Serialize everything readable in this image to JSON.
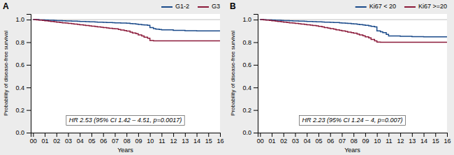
{
  "chart_data": [
    {
      "type": "step",
      "title": "A",
      "annotations": [
        "HR 2.53 (95% CI 1.42 – 4.51, p=0.0017)"
      ],
      "x_label": "Years",
      "y_label": "Probability of disease-free survival",
      "xlim": [
        -0.2,
        16
      ],
      "ylim": [
        0.0,
        1.05
      ],
      "xticks": [
        {
          "value": 0,
          "label": "00"
        },
        {
          "value": 1,
          "label": "01"
        },
        {
          "value": 2,
          "label": "02"
        },
        {
          "value": 3,
          "label": "03"
        },
        {
          "value": 4,
          "label": "04"
        },
        {
          "value": 5,
          "label": "05"
        },
        {
          "value": 6,
          "label": "06"
        },
        {
          "value": 7,
          "label": "07"
        },
        {
          "value": 8,
          "label": "08"
        },
        {
          "value": 9,
          "label": "09"
        },
        10,
        11,
        12,
        13,
        14,
        15,
        16
      ],
      "yticks": [
        {
          "value": 0.0,
          "label": "0.0"
        },
        0.2,
        0.4,
        0.6,
        0.8,
        {
          "value": 1.0,
          "label": "1.0"
        }
      ],
      "grid": false,
      "legend": "upper right",
      "reference_line": 1.0,
      "x": [
        0,
        0.3,
        0.5,
        0.8,
        1.0,
        1.3,
        1.5,
        1.8,
        2.0,
        2.3,
        2.5,
        2.8,
        3.0,
        3.3,
        3.5,
        3.8,
        4.0,
        4.3,
        4.5,
        4.8,
        5.0,
        5.3,
        5.5,
        5.8,
        6.0,
        6.3,
        6.5,
        6.8,
        7.0,
        7.3,
        7.5,
        7.8,
        8.0,
        8.3,
        8.5,
        8.8,
        9.0,
        9.3,
        9.5,
        9.8,
        10.0,
        10.3,
        10.5,
        10.8,
        11.0,
        12.0,
        13.0,
        14.0,
        15.0,
        16.0
      ],
      "series": [
        {
          "name": "G1-2",
          "color": "#1a4a8a",
          "values": [
            1.0,
            1.0,
            0.998,
            0.997,
            0.996,
            0.995,
            0.994,
            0.993,
            0.992,
            0.991,
            0.99,
            0.989,
            0.988,
            0.987,
            0.986,
            0.985,
            0.984,
            0.983,
            0.982,
            0.981,
            0.98,
            0.979,
            0.978,
            0.977,
            0.976,
            0.975,
            0.974,
            0.973,
            0.972,
            0.971,
            0.97,
            0.969,
            0.968,
            0.965,
            0.963,
            0.96,
            0.958,
            0.955,
            0.953,
            0.95,
            0.93,
            0.92,
            0.915,
            0.912,
            0.91,
            0.905,
            0.902,
            0.9,
            0.9,
            0.9
          ]
        },
        {
          "name": "G3",
          "color": "#8b1a3a",
          "values": [
            1.0,
            0.998,
            0.996,
            0.993,
            0.99,
            0.987,
            0.984,
            0.981,
            0.978,
            0.975,
            0.972,
            0.969,
            0.966,
            0.963,
            0.96,
            0.957,
            0.954,
            0.951,
            0.948,
            0.945,
            0.942,
            0.939,
            0.936,
            0.933,
            0.93,
            0.927,
            0.924,
            0.921,
            0.918,
            0.913,
            0.908,
            0.903,
            0.898,
            0.89,
            0.882,
            0.875,
            0.865,
            0.855,
            0.845,
            0.835,
            0.815,
            0.812,
            0.812,
            0.812,
            0.812,
            0.812,
            0.812,
            0.812,
            0.812,
            0.812
          ]
        }
      ]
    },
    {
      "type": "step",
      "title": "B",
      "annotations": [
        "HR 2.23 (95% CI 1.24 – 4, p=0.007)"
      ],
      "x_label": "Years",
      "y_label": "Probability of disease-free survival",
      "xlim": [
        -0.2,
        16
      ],
      "ylim": [
        0.0,
        1.05
      ],
      "xticks": [
        {
          "value": 0,
          "label": "00"
        },
        {
          "value": 1,
          "label": "01"
        },
        {
          "value": 2,
          "label": "02"
        },
        {
          "value": 3,
          "label": "03"
        },
        {
          "value": 4,
          "label": "04"
        },
        {
          "value": 5,
          "label": "05"
        },
        {
          "value": 6,
          "label": "06"
        },
        {
          "value": 7,
          "label": "07"
        },
        {
          "value": 8,
          "label": "08"
        },
        {
          "value": 9,
          "label": "09"
        },
        10,
        11,
        12,
        13,
        14,
        15,
        16
      ],
      "yticks": [
        {
          "value": 0.0,
          "label": "0.0"
        },
        0.2,
        0.4,
        0.6,
        0.8,
        {
          "value": 1.0,
          "label": "1.0"
        }
      ],
      "grid": false,
      "legend": "upper right",
      "reference_line": 1.0,
      "x": [
        0,
        0.3,
        0.5,
        0.8,
        1.0,
        1.3,
        1.5,
        1.8,
        2.0,
        2.3,
        2.5,
        2.8,
        3.0,
        3.3,
        3.5,
        3.8,
        4.0,
        4.3,
        4.5,
        4.8,
        5.0,
        5.3,
        5.5,
        5.8,
        6.0,
        6.3,
        6.5,
        6.8,
        7.0,
        7.3,
        7.5,
        7.8,
        8.0,
        8.3,
        8.5,
        8.8,
        9.0,
        9.3,
        9.5,
        9.8,
        10.0,
        10.3,
        10.5,
        10.8,
        11.0,
        12.0,
        13.0,
        14.0,
        15.0,
        16.0
      ],
      "series": [
        {
          "name": "Ki67 < 20",
          "color": "#1a4a8a",
          "values": [
            1.0,
            0.999,
            0.998,
            0.997,
            0.996,
            0.995,
            0.994,
            0.993,
            0.992,
            0.991,
            0.99,
            0.989,
            0.988,
            0.987,
            0.986,
            0.985,
            0.984,
            0.983,
            0.982,
            0.981,
            0.98,
            0.979,
            0.978,
            0.977,
            0.976,
            0.975,
            0.974,
            0.972,
            0.97,
            0.968,
            0.966,
            0.964,
            0.962,
            0.959,
            0.956,
            0.953,
            0.95,
            0.945,
            0.94,
            0.935,
            0.9,
            0.892,
            0.885,
            0.87,
            0.855,
            0.852,
            0.85,
            0.848,
            0.848,
            0.848
          ]
        },
        {
          "name": "Ki67 >=20",
          "color": "#8b1a3a",
          "values": [
            1.0,
            0.998,
            0.996,
            0.993,
            0.99,
            0.987,
            0.984,
            0.981,
            0.978,
            0.975,
            0.972,
            0.969,
            0.966,
            0.963,
            0.96,
            0.957,
            0.954,
            0.951,
            0.948,
            0.945,
            0.94,
            0.935,
            0.93,
            0.925,
            0.92,
            0.915,
            0.91,
            0.905,
            0.9,
            0.895,
            0.89,
            0.885,
            0.88,
            0.873,
            0.865,
            0.857,
            0.848,
            0.838,
            0.825,
            0.812,
            0.802,
            0.8,
            0.8,
            0.8,
            0.8,
            0.8,
            0.8,
            0.8,
            0.8,
            0.8
          ]
        }
      ]
    }
  ]
}
